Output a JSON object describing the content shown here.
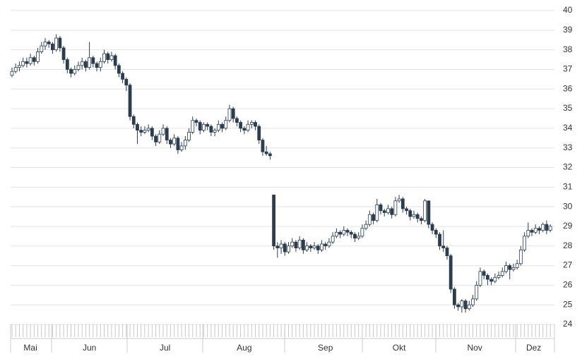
{
  "chart_data": {
    "type": "candlestick",
    "color": "#2b3d4f",
    "ylim": [
      24,
      40
    ],
    "yticks": [
      24,
      25,
      26,
      27,
      28,
      29,
      30,
      31,
      32,
      33,
      34,
      35,
      36,
      37,
      38,
      39,
      40
    ],
    "grid": true,
    "y_axis_side": "right",
    "xticks": [
      {
        "value": 5,
        "label": "Mai"
      },
      {
        "value": 21,
        "label": "Jun"
      },
      {
        "value": 41.5,
        "label": "Jul"
      },
      {
        "value": 63,
        "label": "Aug"
      },
      {
        "value": 85,
        "label": "Sep"
      },
      {
        "value": 105,
        "label": "Okt"
      },
      {
        "value": 125.5,
        "label": "Nov"
      },
      {
        "value": 141.5,
        "label": "Dez"
      }
    ],
    "ohlc": [
      [
        36.7,
        37.1,
        36.6,
        36.9
      ],
      [
        36.9,
        37.3,
        36.8,
        37.1
      ],
      [
        37.1,
        37.4,
        36.9,
        37.2
      ],
      [
        37.2,
        37.6,
        37.1,
        37.4
      ],
      [
        37.4,
        37.6,
        37.1,
        37.3
      ],
      [
        37.3,
        37.8,
        37.2,
        37.6
      ],
      [
        37.6,
        37.7,
        37.2,
        37.4
      ],
      [
        37.4,
        38.1,
        37.3,
        37.9
      ],
      [
        37.9,
        38.4,
        37.8,
        38.2
      ],
      [
        38.2,
        38.6,
        38.0,
        38.4
      ],
      [
        38.4,
        38.5,
        38.1,
        38.3
      ],
      [
        38.3,
        38.4,
        37.8,
        38.0
      ],
      [
        38.0,
        38.8,
        37.9,
        38.6
      ],
      [
        38.6,
        38.7,
        37.9,
        38.1
      ],
      [
        38.1,
        38.2,
        37.3,
        37.5
      ],
      [
        37.5,
        37.6,
        36.8,
        37.0
      ],
      [
        37.0,
        37.1,
        36.6,
        36.8
      ],
      [
        36.8,
        37.2,
        36.7,
        37.0
      ],
      [
        37.0,
        37.4,
        36.9,
        37.2
      ],
      [
        37.2,
        37.6,
        37.0,
        37.4
      ],
      [
        37.4,
        37.5,
        36.9,
        37.1
      ],
      [
        37.1,
        38.4,
        37.0,
        37.6
      ],
      [
        37.6,
        37.7,
        37.1,
        37.3
      ],
      [
        37.3,
        37.4,
        36.9,
        37.1
      ],
      [
        37.1,
        37.6,
        36.9,
        37.4
      ],
      [
        37.4,
        38.0,
        37.3,
        37.8
      ],
      [
        37.8,
        37.9,
        37.3,
        37.5
      ],
      [
        37.5,
        37.9,
        37.4,
        37.7
      ],
      [
        37.7,
        37.8,
        37.0,
        37.2
      ],
      [
        37.2,
        37.3,
        36.6,
        36.8
      ],
      [
        36.8,
        36.9,
        36.3,
        36.5
      ],
      [
        36.5,
        36.6,
        35.9,
        36.2
      ],
      [
        36.2,
        36.3,
        34.4,
        34.6
      ],
      [
        34.6,
        34.7,
        34.0,
        34.2
      ],
      [
        34.2,
        34.3,
        33.2,
        33.9
      ],
      [
        33.9,
        34.1,
        33.6,
        33.8
      ],
      [
        33.8,
        34.1,
        33.7,
        33.9
      ],
      [
        33.9,
        34.2,
        33.8,
        34.0
      ],
      [
        34.0,
        34.1,
        33.4,
        33.6
      ],
      [
        33.6,
        33.7,
        33.1,
        33.3
      ],
      [
        33.3,
        33.9,
        33.2,
        33.7
      ],
      [
        33.7,
        34.2,
        33.6,
        34.0
      ],
      [
        34.0,
        34.1,
        33.2,
        33.4
      ],
      [
        33.4,
        33.5,
        33.0,
        33.2
      ],
      [
        33.2,
        33.7,
        33.1,
        33.5
      ],
      [
        33.5,
        33.6,
        32.7,
        32.9
      ],
      [
        32.9,
        33.3,
        32.8,
        33.1
      ],
      [
        33.1,
        33.6,
        32.9,
        33.4
      ],
      [
        33.4,
        34.0,
        33.3,
        33.8
      ],
      [
        33.8,
        34.6,
        33.7,
        34.4
      ],
      [
        34.4,
        34.5,
        34.1,
        34.3
      ],
      [
        34.3,
        34.4,
        33.7,
        33.9
      ],
      [
        33.9,
        34.3,
        33.8,
        34.2
      ],
      [
        34.2,
        34.3,
        33.9,
        34.1
      ],
      [
        34.1,
        34.2,
        33.6,
        33.8
      ],
      [
        33.8,
        34.0,
        33.6,
        33.9
      ],
      [
        33.9,
        34.4,
        33.8,
        34.2
      ],
      [
        34.2,
        34.3,
        33.8,
        34.0
      ],
      [
        34.0,
        34.6,
        33.9,
        34.4
      ],
      [
        34.4,
        35.2,
        34.3,
        35.0
      ],
      [
        35.0,
        35.1,
        34.3,
        34.5
      ],
      [
        34.5,
        34.6,
        34.1,
        34.3
      ],
      [
        34.3,
        34.4,
        33.8,
        34.0
      ],
      [
        34.0,
        34.1,
        33.7,
        33.9
      ],
      [
        33.9,
        34.4,
        33.8,
        34.2
      ],
      [
        34.2,
        34.4,
        34.0,
        34.3
      ],
      [
        34.3,
        34.4,
        33.9,
        34.1
      ],
      [
        34.1,
        34.2,
        33.2,
        33.4
      ],
      [
        33.4,
        33.5,
        32.6,
        32.8
      ],
      [
        32.8,
        33.1,
        32.6,
        32.7
      ],
      [
        32.7,
        32.8,
        32.4,
        32.6
      ],
      [
        30.6,
        30.6,
        27.8,
        28.0
      ],
      [
        28.0,
        28.2,
        27.4,
        27.9
      ],
      [
        27.9,
        28.3,
        27.6,
        28.1
      ],
      [
        28.1,
        28.2,
        27.5,
        27.7
      ],
      [
        27.7,
        28.2,
        27.6,
        28.0
      ],
      [
        28.0,
        28.4,
        27.9,
        28.2
      ],
      [
        28.2,
        28.3,
        27.7,
        27.9
      ],
      [
        27.9,
        28.5,
        27.8,
        28.3
      ],
      [
        28.3,
        28.4,
        27.6,
        27.8
      ],
      [
        27.8,
        28.2,
        27.7,
        28.0
      ],
      [
        28.0,
        28.1,
        27.7,
        27.9
      ],
      [
        27.9,
        28.2,
        27.8,
        28.0
      ],
      [
        28.0,
        28.1,
        27.6,
        27.8
      ],
      [
        27.8,
        28.3,
        27.7,
        28.1
      ],
      [
        28.1,
        28.2,
        27.8,
        28.0
      ],
      [
        28.0,
        28.4,
        27.9,
        28.2
      ],
      [
        28.2,
        28.7,
        28.1,
        28.5
      ],
      [
        28.5,
        28.9,
        28.4,
        28.7
      ],
      [
        28.7,
        28.8,
        28.4,
        28.6
      ],
      [
        28.6,
        29.0,
        28.5,
        28.8
      ],
      [
        28.8,
        28.9,
        28.5,
        28.7
      ],
      [
        28.7,
        28.8,
        28.4,
        28.6
      ],
      [
        28.6,
        28.7,
        28.2,
        28.4
      ],
      [
        28.4,
        28.7,
        28.3,
        28.5
      ],
      [
        28.5,
        29.1,
        28.4,
        28.9
      ],
      [
        28.9,
        29.3,
        28.8,
        29.1
      ],
      [
        29.1,
        29.8,
        29.0,
        29.6
      ],
      [
        29.6,
        29.7,
        29.1,
        29.3
      ],
      [
        29.3,
        30.4,
        29.2,
        30.1
      ],
      [
        30.1,
        30.2,
        29.6,
        29.8
      ],
      [
        29.8,
        29.9,
        29.5,
        29.7
      ],
      [
        29.7,
        30.1,
        29.6,
        29.9
      ],
      [
        29.9,
        30.0,
        29.4,
        29.6
      ],
      [
        29.6,
        30.5,
        29.5,
        30.3
      ],
      [
        30.3,
        30.6,
        30.2,
        30.4
      ],
      [
        30.4,
        30.5,
        29.7,
        29.9
      ],
      [
        29.9,
        30.0,
        29.6,
        29.8
      ],
      [
        29.8,
        29.9,
        29.3,
        29.5
      ],
      [
        29.5,
        29.8,
        29.4,
        29.6
      ],
      [
        29.6,
        29.7,
        29.2,
        29.4
      ],
      [
        29.4,
        29.5,
        29.1,
        29.3
      ],
      [
        29.3,
        30.4,
        29.2,
        30.3
      ],
      [
        30.3,
        30.3,
        28.9,
        29.1
      ],
      [
        29.1,
        29.2,
        28.6,
        28.8
      ],
      [
        28.8,
        28.9,
        28.4,
        28.6
      ],
      [
        28.6,
        28.7,
        27.8,
        28.0
      ],
      [
        28.0,
        28.8,
        27.7,
        27.9
      ],
      [
        27.9,
        28.0,
        27.3,
        27.5
      ],
      [
        27.5,
        27.6,
        25.6,
        25.8
      ],
      [
        25.8,
        25.9,
        24.8,
        25.0
      ],
      [
        25.0,
        25.1,
        24.7,
        24.9
      ],
      [
        24.9,
        25.3,
        24.6,
        25.2
      ],
      [
        25.2,
        25.3,
        24.6,
        24.8
      ],
      [
        24.8,
        25.2,
        24.7,
        25.0
      ],
      [
        25.0,
        25.5,
        24.9,
        25.3
      ],
      [
        25.3,
        26.2,
        25.2,
        26.0
      ],
      [
        26.0,
        26.9,
        25.9,
        26.7
      ],
      [
        26.7,
        26.8,
        26.3,
        26.5
      ],
      [
        26.5,
        26.6,
        26.0,
        26.3
      ],
      [
        26.3,
        26.4,
        26.0,
        26.2
      ],
      [
        26.2,
        26.6,
        26.1,
        26.4
      ],
      [
        26.4,
        26.7,
        26.3,
        26.5
      ],
      [
        26.5,
        26.9,
        26.4,
        26.7
      ],
      [
        26.7,
        27.2,
        26.6,
        27.0
      ],
      [
        27.0,
        27.1,
        26.3,
        26.8
      ],
      [
        26.8,
        27.1,
        26.7,
        26.9
      ],
      [
        26.9,
        27.3,
        26.8,
        27.1
      ],
      [
        27.1,
        28.0,
        27.0,
        27.8
      ],
      [
        27.8,
        28.7,
        27.7,
        28.5
      ],
      [
        28.5,
        29.2,
        28.4,
        28.8
      ],
      [
        28.8,
        28.9,
        28.5,
        28.7
      ],
      [
        28.7,
        29.1,
        28.6,
        28.9
      ],
      [
        28.9,
        29.0,
        28.6,
        28.8
      ],
      [
        28.8,
        29.2,
        28.7,
        29.1
      ],
      [
        29.1,
        29.3,
        28.6,
        28.8
      ],
      [
        28.8,
        29.1,
        28.7,
        29.0
      ]
    ]
  }
}
